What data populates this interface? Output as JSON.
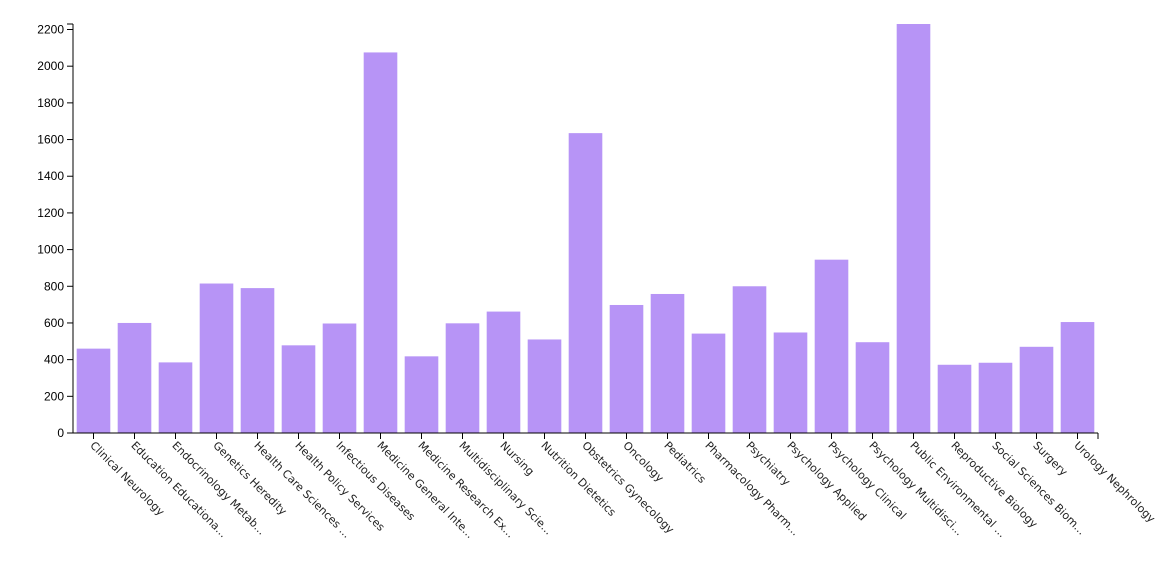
{
  "chart_data": {
    "type": "bar",
    "categories": [
      "Clinical Neurology",
      "Education Educationa...",
      "Endocrinology Metab...",
      "Genetics Heredity",
      "Health Care Sciences ...",
      "Health Policy Services",
      "Infectious Diseases",
      "Medicine General Inte...",
      "Medicine Research Ex...",
      "Multidisciplinary Scie...",
      "Nursing",
      "Nutrition Dietetics",
      "Obstetrics Gynecology",
      "Oncology",
      "Pediatrics",
      "Pharmacology Pharm...",
      "Psychiatry",
      "Psychology Applied",
      "Psychology Clinical",
      "Psychology Multidisci...",
      "Public Environmental ...",
      "Reproductive Biology",
      "Social Sciences Biom...",
      "Surgery",
      "Urology Nephrology"
    ],
    "values": [
      460,
      600,
      385,
      815,
      790,
      478,
      597,
      2075,
      418,
      598,
      662,
      510,
      1635,
      698,
      758,
      542,
      800,
      548,
      945,
      495,
      2230,
      372,
      383,
      470,
      605
    ],
    "ylim": [
      0,
      2230
    ],
    "yticks": [
      0,
      200,
      400,
      600,
      800,
      1000,
      1200,
      1400,
      1600,
      1800,
      2000,
      2200
    ],
    "bar_color": "#b794f6",
    "grid": false
  }
}
